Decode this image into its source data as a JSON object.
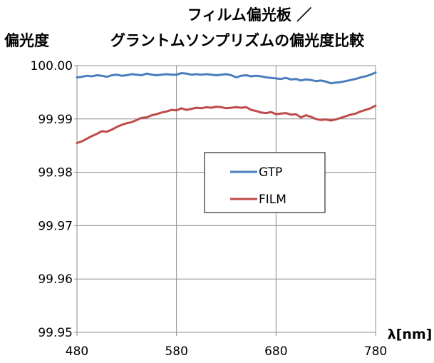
{
  "chart_data": {
    "type": "line",
    "title": "フィルム偏光板 ／",
    "subtitle": "グラントムソンプリズムの偏光度比較",
    "ylabel": "偏光度",
    "xlabel": "λ[nm]",
    "xlim": [
      480,
      780
    ],
    "ylim": [
      99.95,
      100.0
    ],
    "x_ticks": [
      480,
      580,
      680,
      780
    ],
    "y_ticks": [
      "99.95",
      "99.96",
      "99.97",
      "99.98",
      "99.99",
      "100.00"
    ],
    "grid": "horizontal",
    "legend_position": "center-right",
    "series": [
      {
        "name": "GTP",
        "color": "#4a7ebb",
        "x": [
          480,
          485,
          490,
          495,
          500,
          505,
          510,
          515,
          520,
          525,
          530,
          535,
          540,
          545,
          550,
          555,
          560,
          565,
          570,
          575,
          580,
          585,
          590,
          595,
          600,
          605,
          610,
          615,
          620,
          625,
          630,
          635,
          640,
          645,
          650,
          655,
          660,
          665,
          670,
          675,
          680,
          685,
          690,
          695,
          700,
          705,
          710,
          715,
          720,
          725,
          730,
          735,
          740,
          745,
          750,
          755,
          760,
          765,
          770,
          775,
          780
        ],
        "values": [
          99.9978,
          99.9979,
          99.9981,
          99.998,
          99.9982,
          99.9981,
          99.9979,
          99.9982,
          99.9983,
          99.9981,
          99.9982,
          99.9984,
          99.9983,
          99.9982,
          99.9985,
          99.9983,
          99.9982,
          99.9983,
          99.9984,
          99.9983,
          99.9983,
          99.9986,
          99.9985,
          99.9983,
          99.9984,
          99.9983,
          99.9984,
          99.9983,
          99.9982,
          99.9983,
          99.9984,
          99.9982,
          99.9978,
          99.9981,
          99.9982,
          99.998,
          99.9981,
          99.998,
          99.9978,
          99.9977,
          99.9976,
          99.9975,
          99.9977,
          99.9974,
          99.9975,
          99.9972,
          99.9974,
          99.9973,
          99.9971,
          99.9972,
          99.997,
          99.9967,
          99.9968,
          99.9969,
          99.9971,
          99.9973,
          99.9975,
          99.9978,
          99.998,
          99.9983,
          99.9987
        ]
      },
      {
        "name": "FILM",
        "color": "#be4b48",
        "x": [
          480,
          485,
          490,
          495,
          500,
          505,
          510,
          515,
          520,
          525,
          530,
          535,
          540,
          545,
          550,
          555,
          560,
          565,
          570,
          575,
          580,
          585,
          590,
          595,
          600,
          605,
          610,
          615,
          620,
          625,
          630,
          635,
          640,
          645,
          650,
          655,
          660,
          665,
          670,
          675,
          680,
          685,
          690,
          695,
          700,
          705,
          710,
          715,
          720,
          725,
          730,
          735,
          740,
          745,
          750,
          755,
          760,
          765,
          770,
          775,
          780
        ],
        "values": [
          99.9855,
          99.9858,
          99.9863,
          99.9868,
          99.9872,
          99.9877,
          99.9876,
          99.988,
          99.9885,
          99.9889,
          99.9892,
          99.9894,
          99.9898,
          99.9902,
          99.9903,
          99.9907,
          99.9909,
          99.9912,
          99.9914,
          99.9917,
          99.9916,
          99.992,
          99.9917,
          99.9919,
          99.9921,
          99.992,
          99.9922,
          99.9921,
          99.9923,
          99.9922,
          99.992,
          99.9921,
          99.9922,
          99.9921,
          99.9922,
          99.9917,
          99.9915,
          99.9912,
          99.9911,
          99.9913,
          99.9909,
          99.991,
          99.9911,
          99.9908,
          99.9909,
          99.9903,
          99.9907,
          99.9904,
          99.99,
          99.9898,
          99.9899,
          99.9897,
          99.9899,
          99.9902,
          99.9905,
          99.9908,
          99.991,
          99.9914,
          99.9917,
          99.992,
          99.9925
        ]
      }
    ]
  }
}
